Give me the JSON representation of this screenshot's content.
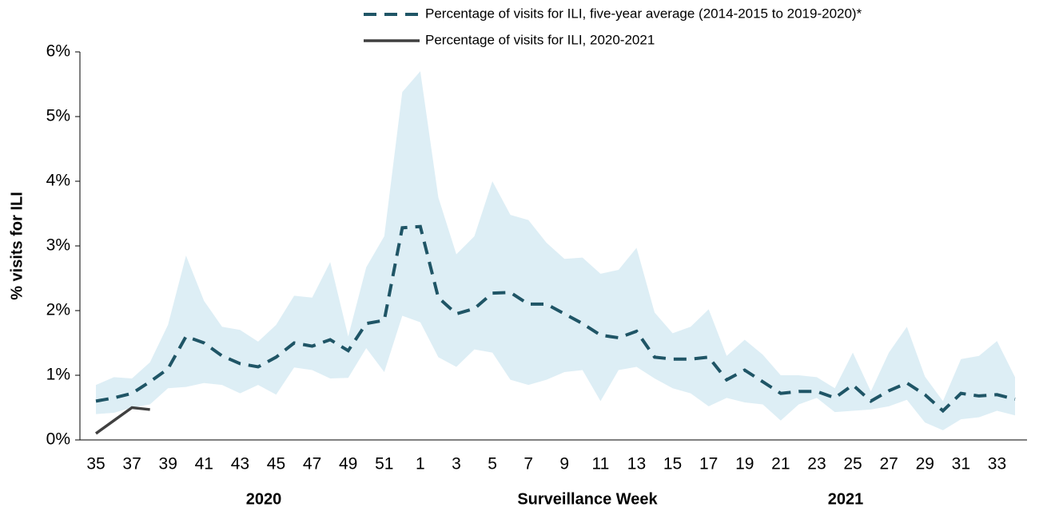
{
  "chart_data": {
    "type": "line",
    "y_label": "% visits for ILI",
    "x_label": "Surveillance Week",
    "x_groups": [
      "2020",
      "2021"
    ],
    "categories": [
      "35",
      null,
      "37",
      null,
      "39",
      null,
      "41",
      null,
      "43",
      null,
      "45",
      null,
      "47",
      null,
      "49",
      null,
      "51",
      null,
      "1",
      null,
      "3",
      null,
      "5",
      null,
      "7",
      null,
      "9",
      null,
      "11",
      null,
      "13",
      null,
      "15",
      null,
      "17",
      null,
      "19",
      null,
      "21",
      null,
      "23",
      null,
      "25",
      null,
      "27",
      null,
      "29",
      null,
      "31",
      null,
      "33",
      null
    ],
    "ylim": [
      0,
      6
    ],
    "yticks": [
      {
        "value": 0,
        "label": "0%"
      },
      {
        "value": 1,
        "label": "1%"
      },
      {
        "value": 2,
        "label": "2%"
      },
      {
        "value": 3,
        "label": "3%"
      },
      {
        "value": 4,
        "label": "4%"
      },
      {
        "value": 5,
        "label": "5%"
      },
      {
        "value": 6,
        "label": "6%"
      }
    ],
    "band": {
      "color": "#ddeef5",
      "upper": [
        0.85,
        0.97,
        0.95,
        1.2,
        1.78,
        2.85,
        2.15,
        1.75,
        1.7,
        1.52,
        1.78,
        2.23,
        2.2,
        2.75,
        1.6,
        2.67,
        3.15,
        5.38,
        5.7,
        3.75,
        2.87,
        3.15,
        4.0,
        3.48,
        3.4,
        3.05,
        2.8,
        2.82,
        2.57,
        2.63,
        2.97,
        1.97,
        1.65,
        1.75,
        2.02,
        1.3,
        1.55,
        1.32,
        1.0,
        1.0,
        0.97,
        0.8,
        1.35,
        0.75,
        1.35,
        1.75,
        0.98,
        0.6,
        1.25,
        1.3,
        1.53,
        0.97
      ],
      "lower": [
        0.4,
        0.42,
        0.5,
        0.55,
        0.8,
        0.82,
        0.88,
        0.85,
        0.72,
        0.85,
        0.7,
        1.12,
        1.08,
        0.95,
        0.96,
        1.42,
        1.05,
        1.92,
        1.82,
        1.28,
        1.13,
        1.4,
        1.35,
        0.93,
        0.85,
        0.93,
        1.05,
        1.08,
        0.6,
        1.08,
        1.13,
        0.95,
        0.8,
        0.72,
        0.52,
        0.65,
        0.58,
        0.55,
        0.3,
        0.55,
        0.65,
        0.43,
        0.45,
        0.47,
        0.52,
        0.62,
        0.27,
        0.15,
        0.32,
        0.35,
        0.45,
        0.38
      ]
    },
    "series": [
      {
        "name": "Percentage of visits for ILI, five-year average (2014-2015 to 2019-2020)*",
        "color": "#1f5566",
        "dashed": true,
        "values": [
          0.6,
          0.65,
          0.72,
          0.9,
          1.1,
          1.6,
          1.5,
          1.3,
          1.18,
          1.13,
          1.28,
          1.5,
          1.45,
          1.55,
          1.38,
          1.8,
          1.85,
          3.28,
          3.3,
          2.2,
          1.95,
          2.03,
          2.27,
          2.28,
          2.1,
          2.1,
          1.95,
          1.8,
          1.62,
          1.58,
          1.68,
          1.28,
          1.25,
          1.25,
          1.28,
          0.93,
          1.08,
          0.9,
          0.72,
          0.75,
          0.75,
          0.65,
          0.85,
          0.6,
          0.76,
          0.88,
          0.7,
          0.45,
          0.72,
          0.68,
          0.7,
          0.63
        ]
      },
      {
        "name": "Percentage of visits for ILI, 2020-2021",
        "color": "#404040",
        "dashed": false,
        "values": [
          0.1,
          0.3,
          0.5,
          0.47,
          null,
          null,
          null,
          null,
          null,
          null,
          null,
          null,
          null,
          null,
          null,
          null,
          null,
          null,
          null,
          null,
          null,
          null,
          null,
          null,
          null,
          null,
          null,
          null,
          null,
          null,
          null,
          null,
          null,
          null,
          null,
          null,
          null,
          null,
          null,
          null,
          null,
          null,
          null,
          null,
          null,
          null,
          null,
          null,
          null,
          null,
          null,
          null
        ]
      }
    ]
  }
}
